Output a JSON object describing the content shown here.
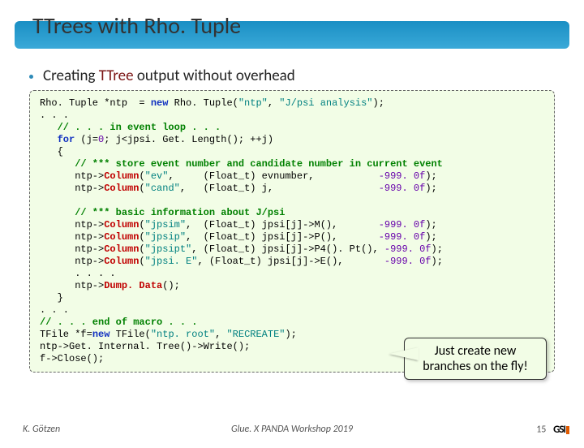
{
  "title": "TTrees with Rho. Tuple",
  "bullet": {
    "pre": "Creating  ",
    "tt": "TTree",
    "post": "  output  without overhead"
  },
  "code": {
    "l1a": "Rho. Tuple *ntp  = ",
    "l1b": "new",
    "l1c": " Rho. Tuple(",
    "l1d": "\"ntp\"",
    "l1e": ", ",
    "l1f": "\"J/psi analysis\"",
    "l1g": ");",
    "l2": ". . .",
    "l3": "   // . . . in event loop . . .",
    "l4a": "   ",
    "l4b": "for",
    "l4c": " (j=",
    "l4d": "0",
    "l4e": "; j<jpsi. Get. Length(); ++j)",
    "l5": "   {",
    "l6": "      // *** store event number and candidate number in current event",
    "l7a": "      ntp->",
    "l7b": "Column",
    "l7c": "(",
    "l7d": "\"ev\"",
    "l7e": ",     (Float_t) evnumber,           ",
    "l7f": "-999. 0f",
    "l7g": ");",
    "l8a": "      ntp->",
    "l8b": "Column",
    "l8c": "(",
    "l8d": "\"cand\"",
    "l8e": ",   (Float_t) j,                  ",
    "l8f": "-999. 0f",
    "l8g": ");",
    "blank": " ",
    "l9": "      // *** basic information about J/psi",
    "l10a": "      ntp->",
    "l10b": "Column",
    "l10c": "(",
    "l10d": "\"jpsim\"",
    "l10e": ",  (Float_t) jpsi[j]->M(),       ",
    "l10f": "-999. 0f",
    "l10g": ");",
    "l11a": "      ntp->",
    "l11b": "Column",
    "l11c": "(",
    "l11d": "\"jpsip\"",
    "l11e": ",  (Float_t) jpsi[j]->P(),       ",
    "l11f": "-999. 0f",
    "l11g": ");",
    "l12a": "      ntp->",
    "l12b": "Column",
    "l12c": "(",
    "l12d": "\"jpsipt\"",
    "l12e": ", (Float_t) jpsi[j]->P4(). Pt(), ",
    "l12f": "-999. 0f",
    "l12g": ");",
    "l13a": "      ntp->",
    "l13b": "Column",
    "l13c": "(",
    "l13d": "\"jpsi. E\"",
    "l13e": ", (Float_t) jpsi[j]->E(),       ",
    "l13f": "-999. 0f",
    "l13g": ");",
    "l14": "      . . . .",
    "l15a": "      ntp->",
    "l15b": "Dump. Data",
    "l15c": "();",
    "l16": "   }",
    "l17": ". . .",
    "l18": "// . . . end of macro . . .",
    "l19a": "TFile *f=",
    "l19b": "new",
    "l19c": " TFile(",
    "l19d": "\"ntp. root\"",
    "l19e": ", ",
    "l19f": "\"RECREATE\"",
    "l19g": ");",
    "l20": "ntp->Get. Internal. Tree()->Write();",
    "l21": "f->Close();"
  },
  "callout": "Just create new branches on the fly!",
  "footer": {
    "left": "K. Götzen",
    "center": "Glue. X PANDA Workshop 2019",
    "page": "15",
    "brand": "GSI"
  },
  "colors": {
    "titlebar_start": "#1a8fc4",
    "titlebar_end": "#3aa9d8",
    "codebox_bg": "#f2fde6",
    "codebox_border": "#666666",
    "kw_blue": "#1030c0",
    "kw_green": "#008000",
    "kw_red": "#c00000",
    "num": "#6600aa",
    "str": "#008080",
    "ttree": "#7c1616"
  }
}
